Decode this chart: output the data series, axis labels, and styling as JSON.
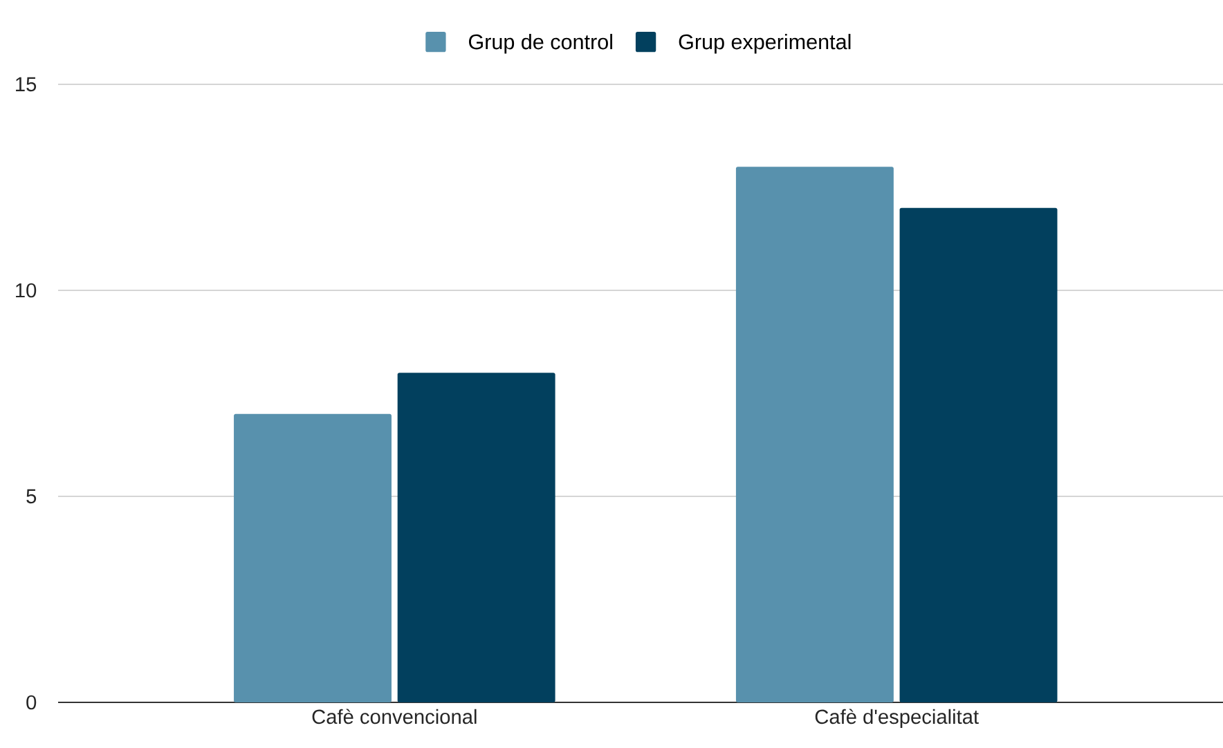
{
  "chart_data": {
    "type": "bar",
    "categories": [
      "Cafè convencional",
      "Cafè d'especialitat"
    ],
    "series": [
      {
        "name": "Grup de control",
        "color": "#5891ad",
        "values": [
          7,
          13
        ]
      },
      {
        "name": "Grup experimental",
        "color": "#02405e",
        "values": [
          8,
          12
        ]
      }
    ],
    "ylim": [
      0,
      15
    ],
    "yticks": [
      0,
      5,
      10,
      15
    ],
    "grid": "y",
    "legend": "top"
  }
}
